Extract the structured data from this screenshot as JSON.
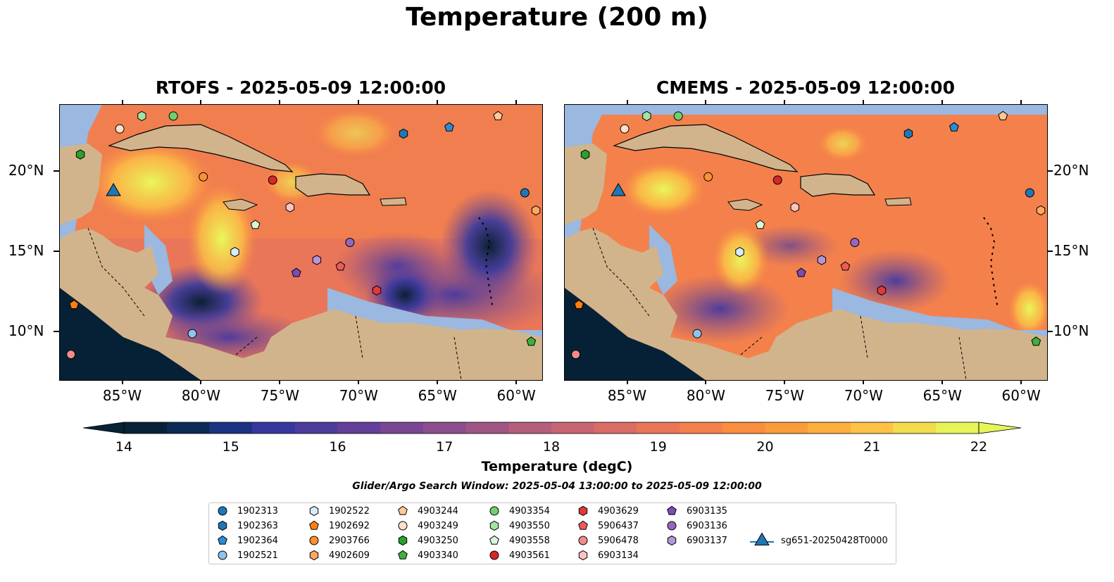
{
  "figure": {
    "title": "Temperature (200 m)",
    "left_panel_title": "RTOFS - 2025-05-09 12:00:00",
    "right_panel_title": "CMEMS - 2025-05-09 12:00:00",
    "colorbar_label": "Temperature (degC)",
    "search_window": "Glider/Argo Search Window: 2025-05-04 13:00:00 to 2025-05-09 12:00:00"
  },
  "map": {
    "lon_range": [
      -89,
      -58.4
    ],
    "lat_range": [
      7,
      24.2
    ],
    "x_ticks": [
      "85°W",
      "80°W",
      "75°W",
      "70°W",
      "65°W",
      "60°W"
    ],
    "y_ticks": [
      "20°N",
      "15°N",
      "10°N"
    ],
    "colors": {
      "land": "#d2b48c",
      "shallow": "#9ab8e0",
      "low": "#062135",
      "high": "#e9f75a"
    }
  },
  "colorbar": {
    "min": 14,
    "max": 22,
    "ticks": [
      "14",
      "15",
      "16",
      "17",
      "18",
      "19",
      "20",
      "21",
      "22"
    ],
    "colors": [
      "#072236",
      "#0c2a55",
      "#1c3282",
      "#37389e",
      "#4e3c9c",
      "#633f99",
      "#784794",
      "#8c4e8c",
      "#a05684",
      "#b45d7c",
      "#c76672",
      "#d96d66",
      "#e97659",
      "#f4814c",
      "#f98e3f",
      "#fb9c3b",
      "#fcaf3f",
      "#fdc246",
      "#f2dc4e",
      "#e6f45a"
    ]
  },
  "legend": [
    {
      "label": "1902313",
      "marker": "circle",
      "color": "#1f77b4"
    },
    {
      "label": "1902363",
      "marker": "hexagon",
      "color": "#1f77b4"
    },
    {
      "label": "1902364",
      "marker": "pentagon",
      "color": "#2b8bd3"
    },
    {
      "label": "1902521",
      "marker": "circle",
      "color": "#8ec3ee"
    },
    {
      "label": "1902522",
      "marker": "hexagon",
      "color": "#d6ecfb"
    },
    {
      "label": "1902692",
      "marker": "pentagon",
      "color": "#ff7f0e"
    },
    {
      "label": "2903766",
      "marker": "circle",
      "color": "#ff9030"
    },
    {
      "label": "4902609",
      "marker": "hexagon",
      "color": "#ffa860"
    },
    {
      "label": "4903244",
      "marker": "pentagon",
      "color": "#ffc89a"
    },
    {
      "label": "4903249",
      "marker": "circle",
      "color": "#fde0c8"
    },
    {
      "label": "4903250",
      "marker": "hexagon",
      "color": "#2ca02c"
    },
    {
      "label": "4903340",
      "marker": "pentagon",
      "color": "#3cb33c"
    },
    {
      "label": "4903354",
      "marker": "circle",
      "color": "#6fd06f"
    },
    {
      "label": "4903550",
      "marker": "hexagon",
      "color": "#a3e3a3"
    },
    {
      "label": "4903558",
      "marker": "pentagon",
      "color": "#d8f5d8"
    },
    {
      "label": "4903561",
      "marker": "circle",
      "color": "#d62728"
    },
    {
      "label": "4903629",
      "marker": "hexagon",
      "color": "#e0393a"
    },
    {
      "label": "5906437",
      "marker": "pentagon",
      "color": "#ee5b5b"
    },
    {
      "label": "5906478",
      "marker": "circle",
      "color": "#f48a8a"
    },
    {
      "label": "6903134",
      "marker": "hexagon",
      "color": "#fcc3c3"
    },
    {
      "label": "6903135",
      "marker": "pentagon",
      "color": "#7a4cb5"
    },
    {
      "label": "6903136",
      "marker": "circle",
      "color": "#9467bd"
    },
    {
      "label": "6903137",
      "marker": "hexagon",
      "color": "#b597d8"
    },
    {
      "label": "sg651-20250428T0000",
      "marker": "triangle",
      "color": "#1f77b4"
    }
  ],
  "points": [
    {
      "id": "1902313",
      "lon": -59.5,
      "lat": 18.7
    },
    {
      "id": "1902363",
      "lon": -67.2,
      "lat": 22.4
    },
    {
      "id": "1902364",
      "lon": -64.3,
      "lat": 22.8
    },
    {
      "id": "1902521",
      "lon": -80.6,
      "lat": 9.9
    },
    {
      "id": "1902522",
      "lon": -77.9,
      "lat": 15.0
    },
    {
      "id": "1902692",
      "lon": -88.1,
      "lat": 11.7
    },
    {
      "id": "2903766",
      "lon": -79.9,
      "lat": 19.7
    },
    {
      "id": "4902609",
      "lon": -58.8,
      "lat": 17.6
    },
    {
      "id": "4903244",
      "lon": -61.2,
      "lat": 23.5
    },
    {
      "id": "4903249",
      "lon": -85.2,
      "lat": 22.7
    },
    {
      "id": "4903250",
      "lon": -87.7,
      "lat": 21.1
    },
    {
      "id": "4903340",
      "lon": -59.1,
      "lat": 9.4
    },
    {
      "id": "4903354",
      "lon": -81.8,
      "lat": 23.5
    },
    {
      "id": "4903550",
      "lon": -83.8,
      "lat": 23.5
    },
    {
      "id": "4903558",
      "lon": -76.6,
      "lat": 16.7
    },
    {
      "id": "4903561",
      "lon": -75.5,
      "lat": 19.5
    },
    {
      "id": "4903629",
      "lon": -68.9,
      "lat": 12.6
    },
    {
      "id": "5906437",
      "lon": -71.2,
      "lat": 14.1
    },
    {
      "id": "5906478",
      "lon": -88.3,
      "lat": 8.6
    },
    {
      "id": "6903134",
      "lon": -74.4,
      "lat": 17.8
    },
    {
      "id": "6903135",
      "lon": -74.0,
      "lat": 13.7
    },
    {
      "id": "6903136",
      "lon": -70.6,
      "lat": 15.6
    },
    {
      "id": "6903137",
      "lon": -72.7,
      "lat": 14.5
    },
    {
      "id": "sg651-20250428T0000",
      "lon": -85.6,
      "lat": 18.9
    }
  ]
}
